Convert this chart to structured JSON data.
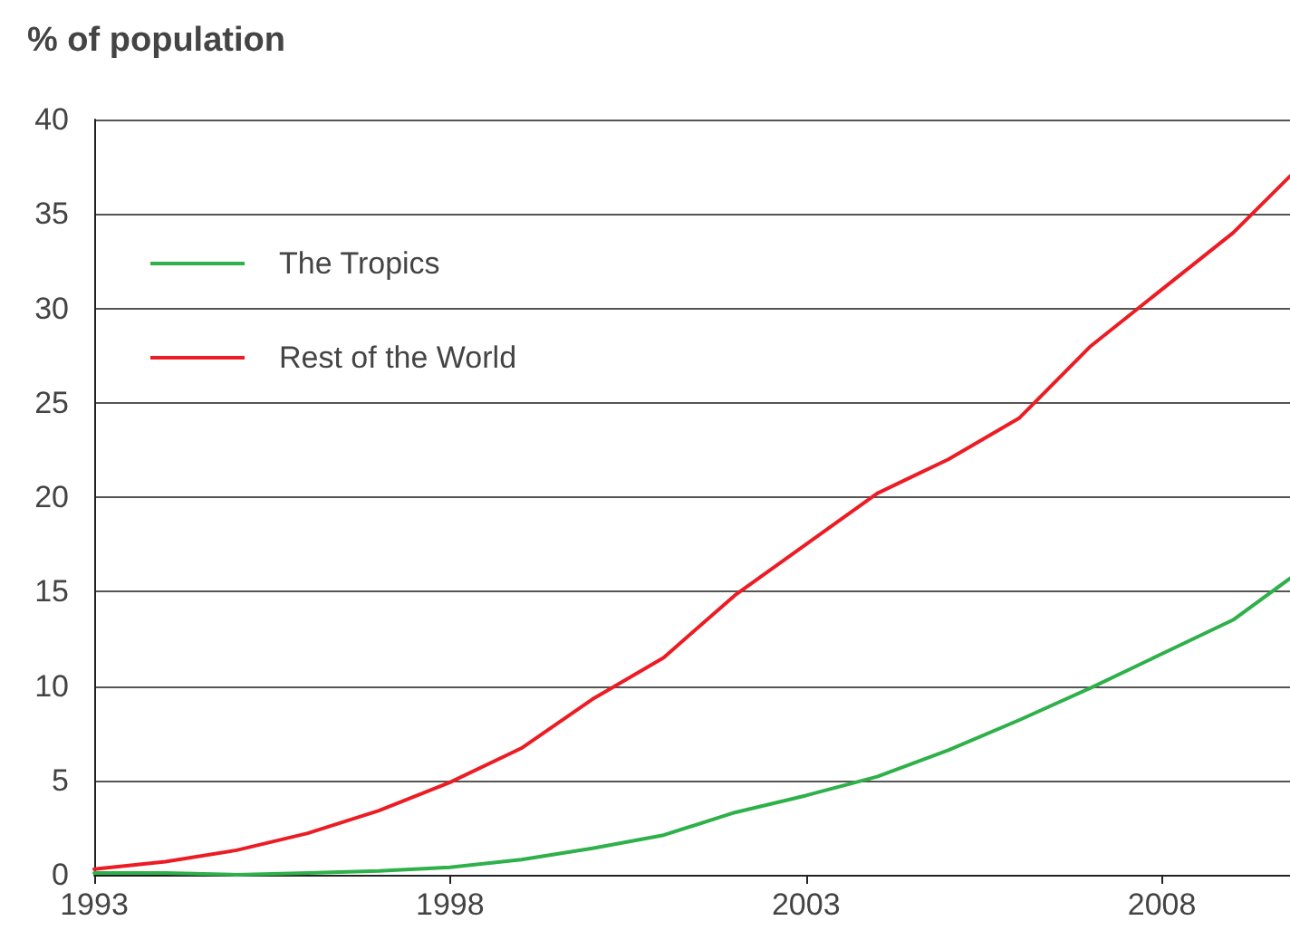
{
  "chart_data": {
    "type": "line",
    "ylabel": "% of population",
    "x": [
      1993,
      1994,
      1995,
      1996,
      1997,
      1998,
      1999,
      2000,
      2001,
      2002,
      2003,
      2004,
      2005,
      2006,
      2007,
      2008,
      2009,
      2009.8
    ],
    "series": [
      {
        "name": "The Tropics",
        "color": "#2eb04a",
        "values": [
          0.1,
          0.1,
          0.0,
          0.1,
          0.2,
          0.4,
          0.8,
          1.4,
          2.1,
          3.3,
          4.2,
          5.2,
          6.6,
          8.2,
          9.9,
          11.7,
          13.5,
          15.7
        ]
      },
      {
        "name": "Rest of the World",
        "color": "#ec1c24",
        "values": [
          0.3,
          0.7,
          1.3,
          2.2,
          3.4,
          4.9,
          6.7,
          9.3,
          11.5,
          14.8,
          17.5,
          20.2,
          22.0,
          24.2,
          28.0,
          31.0,
          34.0,
          37.0
        ]
      }
    ],
    "xlim": [
      1993,
      2009.8
    ],
    "xticks": [
      1993,
      1998,
      2003,
      2008
    ],
    "ylim": [
      0,
      40
    ],
    "yticks": [
      0,
      5,
      10,
      15,
      20,
      25,
      30,
      35,
      40
    ],
    "grid": "y",
    "legend": "top left",
    "marker": "none",
    "line_style": "solid"
  }
}
